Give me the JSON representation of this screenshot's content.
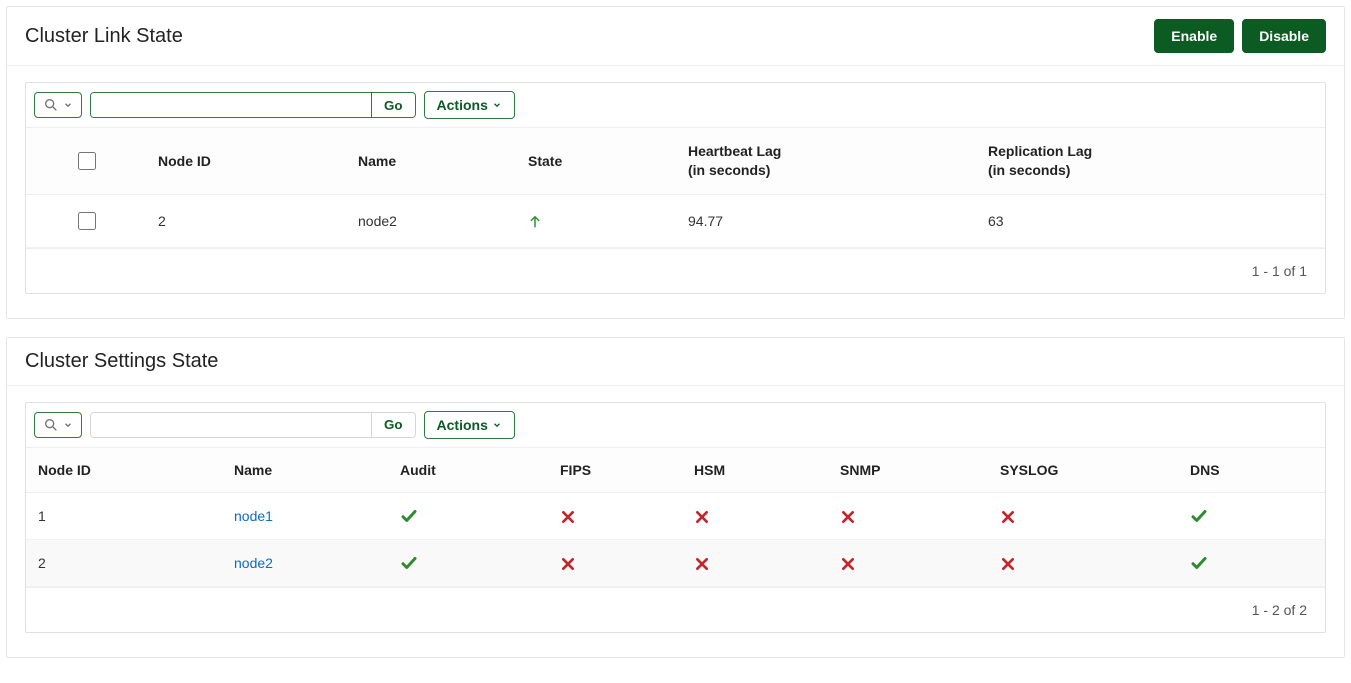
{
  "colors": {
    "primary_btn_bg": "#0b5b23",
    "accent_border": "#2f7a43",
    "link": "#0f6bbf",
    "check_green": "#2e8b2e",
    "cross_red": "#c1272d",
    "up_arrow": "#2e8b2e"
  },
  "link_state": {
    "title": "Cluster Link State",
    "buttons": {
      "enable": "Enable",
      "disable": "Disable"
    },
    "toolbar": {
      "go": "Go",
      "actions": "Actions",
      "search_value": ""
    },
    "columns": {
      "node_id": "Node ID",
      "name": "Name",
      "state": "State",
      "heartbeat_main": "Heartbeat Lag",
      "heartbeat_sub": "(in seconds)",
      "replication_main": "Replication Lag",
      "replication_sub": "(in seconds)"
    },
    "rows": [
      {
        "node_id": "2",
        "name": "node2",
        "state": "up",
        "heartbeat": "94.77",
        "replication": "63"
      }
    ],
    "pager": "1 - 1 of 1"
  },
  "settings_state": {
    "title": "Cluster Settings State",
    "toolbar": {
      "go": "Go",
      "actions": "Actions",
      "search_value": ""
    },
    "columns": {
      "node_id": "Node ID",
      "name": "Name",
      "audit": "Audit",
      "fips": "FIPS",
      "hsm": "HSM",
      "snmp": "SNMP",
      "syslog": "SYSLOG",
      "dns": "DNS"
    },
    "rows": [
      {
        "node_id": "1",
        "name": "node1",
        "audit": true,
        "fips": false,
        "hsm": false,
        "snmp": false,
        "syslog": false,
        "dns": true
      },
      {
        "node_id": "2",
        "name": "node2",
        "audit": true,
        "fips": false,
        "hsm": false,
        "snmp": false,
        "syslog": false,
        "dns": true
      }
    ],
    "pager": "1 - 2 of 2"
  }
}
